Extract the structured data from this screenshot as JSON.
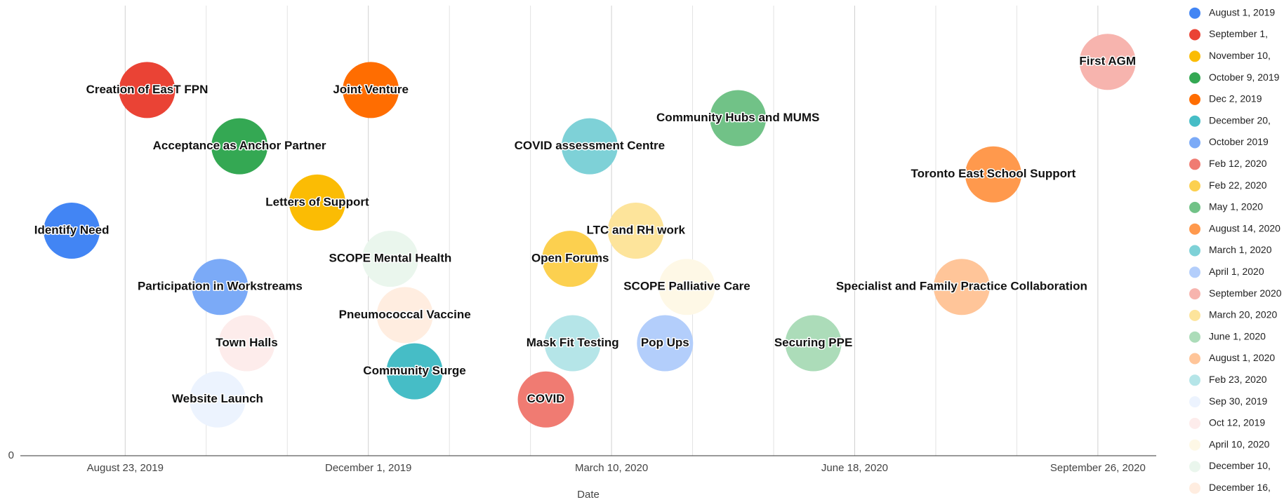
{
  "chart_data": {
    "type": "bubble",
    "x_label": "Date",
    "legend": "right",
    "grid": true,
    "xlim": [
      "2019-07-21",
      "2020-10-20"
    ],
    "xticks": [
      {
        "value": "2019-08-23",
        "label": "August 23, 2019"
      },
      {
        "value": "2019-12-01",
        "label": "December 1, 2019"
      },
      {
        "value": "2020-03-10",
        "label": "March 10, 2020"
      },
      {
        "value": "2020-06-18",
        "label": "June 18, 2020"
      },
      {
        "value": "2020-09-26",
        "label": "September 26, 2020"
      }
    ],
    "ylim": [
      0,
      16
    ],
    "yticks": [
      0
    ],
    "series": [
      {
        "name": "August 1, 2019",
        "color": "#4285f4",
        "x": [
          "2019-08-01"
        ],
        "values": [
          8
        ],
        "labels": [
          "Identify Need"
        ]
      },
      {
        "name": "September 1,",
        "color": "#ea4335",
        "x": [
          "2019-09-01"
        ],
        "values": [
          13
        ],
        "labels": [
          "Creation of EasT FPN"
        ]
      },
      {
        "name": "November 10,",
        "color": "#fbbc04",
        "x": [
          "2019-11-10"
        ],
        "values": [
          9
        ],
        "labels": [
          "Letters of Support"
        ]
      },
      {
        "name": "October 9, 2019",
        "color": "#34a853",
        "x": [
          "2019-10-09"
        ],
        "values": [
          11
        ],
        "labels": [
          "Acceptance as Anchor Partner"
        ]
      },
      {
        "name": "Dec 2, 2019",
        "color": "#ff6d01",
        "x": [
          "2019-12-02"
        ],
        "values": [
          13
        ],
        "labels": [
          "Joint Venture"
        ]
      },
      {
        "name": "December 20,",
        "color": "#46bdc6",
        "x": [
          "2019-12-20"
        ],
        "values": [
          3
        ],
        "labels": [
          "Community Surge"
        ]
      },
      {
        "name": "October 2019",
        "color": "#7baaf7",
        "x": [
          "2019-10-01"
        ],
        "values": [
          6
        ],
        "labels": [
          "Participation in Workstreams"
        ]
      },
      {
        "name": "Feb 12, 2020",
        "color": "#f07b72",
        "x": [
          "2020-02-12"
        ],
        "values": [
          2
        ],
        "labels": [
          "COVID"
        ]
      },
      {
        "name": "Feb 22, 2020",
        "color": "#fcd04f",
        "x": [
          "2020-02-22"
        ],
        "values": [
          7
        ],
        "labels": [
          "Open Forums"
        ]
      },
      {
        "name": "May 1, 2020",
        "color": "#71c287",
        "x": [
          "2020-05-01"
        ],
        "values": [
          12
        ],
        "labels": [
          "Community Hubs and MUMS"
        ]
      },
      {
        "name": "August 14, 2020",
        "color": "#ff994d",
        "x": [
          "2020-08-14"
        ],
        "values": [
          10
        ],
        "labels": [
          "Toronto East School Support"
        ]
      },
      {
        "name": "March 1, 2020",
        "color": "#7ed1d7",
        "x": [
          "2020-03-01"
        ],
        "values": [
          11
        ],
        "labels": [
          "COVID assessment Centre"
        ]
      },
      {
        "name": "April 1, 2020",
        "color": "#b3cefb",
        "x": [
          "2020-04-01"
        ],
        "values": [
          4
        ],
        "labels": [
          "Pop Ups"
        ]
      },
      {
        "name": "September 2020",
        "color": "#f7b4ae",
        "x": [
          "2020-09-30"
        ],
        "values": [
          14
        ],
        "labels": [
          "First AGM"
        ]
      },
      {
        "name": "March 20, 2020",
        "color": "#fde49b",
        "x": [
          "2020-03-20"
        ],
        "values": [
          8
        ],
        "labels": [
          "LTC and RH work"
        ]
      },
      {
        "name": "June 1, 2020",
        "color": "#acdcb9",
        "x": [
          "2020-06-01"
        ],
        "values": [
          4
        ],
        "labels": [
          "Securing PPE"
        ]
      },
      {
        "name": "August 1, 2020",
        "color": "#ffc599",
        "x": [
          "2020-08-01"
        ],
        "values": [
          6
        ],
        "labels": [
          "Specialist and Family Practice Collaboration"
        ]
      },
      {
        "name": "Feb 23, 2020",
        "color": "#b5e5e8",
        "x": [
          "2020-02-23"
        ],
        "values": [
          4
        ],
        "labels": [
          "Mask Fit Testing"
        ]
      },
      {
        "name": "Sep 30, 2019",
        "color": "#ecf3fe",
        "x": [
          "2019-09-30"
        ],
        "values": [
          2
        ],
        "labels": [
          "Website Launch"
        ]
      },
      {
        "name": "Oct 12, 2019",
        "color": "#fdeceb",
        "x": [
          "2019-10-12"
        ],
        "values": [
          4
        ],
        "labels": [
          "Town Halls"
        ]
      },
      {
        "name": "April 10, 2020",
        "color": "#fef8e6",
        "x": [
          "2020-04-10"
        ],
        "values": [
          6
        ],
        "labels": [
          "SCOPE Palliative Care"
        ]
      },
      {
        "name": "December 10,",
        "color": "#eaf6ed",
        "x": [
          "2019-12-10"
        ],
        "values": [
          7
        ],
        "labels": [
          "SCOPE Mental Health"
        ]
      },
      {
        "name": "December 16,",
        "color": "#ffede0",
        "x": [
          "2019-12-16"
        ],
        "values": [
          5
        ],
        "labels": [
          "Pneumococcal Vaccine"
        ]
      }
    ]
  }
}
